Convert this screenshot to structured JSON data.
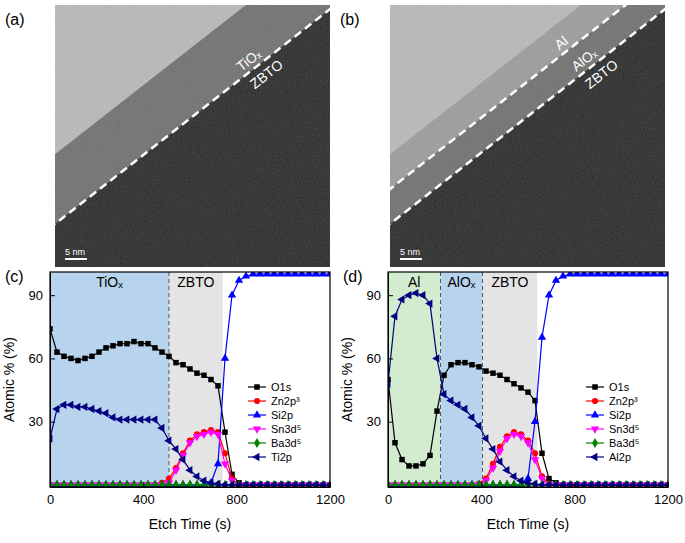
{
  "images": [
    {
      "label": "(a)",
      "layers": [
        "TiOₓ",
        "ZBTO"
      ],
      "scale_bar": "5 nm"
    },
    {
      "label": "(b)",
      "layers": [
        "Al",
        "AlOₓ",
        "ZBTO"
      ],
      "scale_bar": "5 nm"
    }
  ],
  "chart_data": [
    {
      "type": "line",
      "title": "(c)",
      "x_label": "Etch Time (s)",
      "y_label": "Atomic % (%)",
      "xlim": [
        0,
        1200
      ],
      "xticks": [
        0,
        400,
        800,
        1200
      ],
      "ylim": [
        -1,
        101
      ],
      "yticks": [
        30,
        60,
        90
      ],
      "legend": "lower right",
      "regions": [
        {
          "label": "TiOₓ",
          "start": 0,
          "end": 510,
          "color": "#b7d3ee"
        },
        {
          "label": "ZBTO",
          "start": 510,
          "end": 740,
          "color": "#e4e4e4"
        }
      ],
      "x": [
        0,
        30,
        60,
        90,
        120,
        150,
        180,
        210,
        240,
        270,
        300,
        330,
        360,
        390,
        420,
        450,
        480,
        510,
        540,
        570,
        600,
        630,
        660,
        690,
        720,
        750,
        780,
        810,
        840,
        870,
        900,
        930,
        960,
        990,
        1020,
        1050,
        1080,
        1110,
        1140,
        1170,
        1200
      ],
      "series": [
        {
          "name": "O1s",
          "color": "#000000",
          "marker": "square",
          "values": [
            74,
            63,
            61,
            60,
            59,
            60,
            61,
            63,
            65,
            66,
            67,
            67,
            68,
            67,
            67,
            65,
            63,
            61,
            58,
            57,
            55,
            53,
            52,
            50,
            47,
            25,
            5,
            1,
            0,
            0,
            0,
            0,
            0,
            0,
            0,
            0,
            0,
            0,
            0,
            0,
            0
          ]
        },
        {
          "name": "Zn2p³",
          "color": "#ff0000",
          "marker": "circle",
          "values": [
            0,
            0,
            0,
            0,
            0,
            0,
            0,
            0,
            0,
            0,
            0,
            0,
            0,
            0,
            0,
            0,
            1,
            3,
            8,
            15,
            21,
            24,
            25,
            26,
            25,
            15,
            3,
            0,
            0,
            0,
            0,
            0,
            0,
            0,
            0,
            0,
            0,
            0,
            0,
            0,
            0
          ]
        },
        {
          "name": "Si2p",
          "color": "#0000ff",
          "marker": "triangle-up",
          "values": [
            0,
            0,
            0,
            0,
            0,
            0,
            0,
            0,
            0,
            0,
            0,
            0,
            0,
            0,
            0,
            0,
            0,
            0,
            0,
            0,
            0,
            0,
            0,
            1,
            10,
            60,
            90,
            97,
            99,
            100,
            100,
            100,
            100,
            100,
            100,
            100,
            100,
            100,
            100,
            100,
            100
          ]
        },
        {
          "name": "Sn3d⁵",
          "color": "#ff00ff",
          "marker": "triangle-down",
          "values": [
            0,
            0,
            0,
            0,
            0,
            0,
            0,
            0,
            0,
            0,
            0,
            0,
            0,
            0,
            0,
            0,
            0,
            1,
            7,
            14,
            20,
            23,
            24,
            25,
            24,
            10,
            2,
            0,
            0,
            0,
            0,
            0,
            0,
            0,
            0,
            0,
            0,
            0,
            0,
            0,
            0
          ]
        },
        {
          "name": "Ba3d⁵",
          "color": "#008000",
          "marker": "diamond",
          "values": [
            0,
            0,
            0,
            0,
            0,
            0,
            0,
            0,
            0,
            0,
            0,
            0,
            0,
            0,
            0,
            0,
            0,
            0,
            0,
            0,
            0,
            0,
            0,
            0,
            0,
            0,
            0,
            0,
            0,
            0,
            0,
            0,
            0,
            0,
            0,
            0,
            0,
            0,
            0,
            0,
            0
          ]
        },
        {
          "name": "Ti2p",
          "color": "#000080",
          "marker": "triangle-left",
          "values": [
            22,
            36,
            38,
            38,
            37,
            37,
            36,
            35,
            34,
            32,
            31,
            31,
            31,
            31,
            31,
            31,
            27,
            21,
            17,
            12,
            7,
            4,
            2,
            1,
            0.5,
            0,
            0,
            0,
            0,
            0,
            0,
            0,
            0,
            0,
            0,
            0,
            0,
            0,
            0,
            0,
            0
          ]
        }
      ]
    },
    {
      "type": "line",
      "title": "(d)",
      "x_label": "Etch Time (s)",
      "y_label": "Atomic % (%)",
      "xlim": [
        0,
        1200
      ],
      "xticks": [
        0,
        400,
        800,
        1200
      ],
      "ylim": [
        -1,
        101
      ],
      "yticks": [
        30,
        60,
        90
      ],
      "legend": "lower right",
      "regions": [
        {
          "label": "Al",
          "start": 0,
          "end": 225,
          "color": "#d3ebcf"
        },
        {
          "label": "AlOₓ",
          "start": 225,
          "end": 405,
          "color": "#b7d3ee"
        },
        {
          "label": "ZBTO",
          "start": 405,
          "end": 640,
          "color": "#e4e4e4"
        }
      ],
      "x": [
        0,
        30,
        60,
        90,
        120,
        150,
        180,
        210,
        240,
        270,
        300,
        330,
        360,
        390,
        420,
        450,
        480,
        510,
        540,
        570,
        600,
        630,
        660,
        690,
        720,
        750,
        780,
        810,
        840,
        870,
        900,
        930,
        960,
        990,
        1020,
        1050,
        1080,
        1110,
        1140,
        1170,
        1200
      ],
      "series": [
        {
          "name": "O1s",
          "color": "#000000",
          "marker": "square",
          "values": [
            50,
            20,
            12,
            9,
            9,
            10,
            14,
            35,
            52,
            57,
            58,
            58,
            57,
            56,
            54,
            53,
            52,
            50,
            48,
            46,
            44,
            40,
            15,
            3,
            1,
            0,
            0,
            0,
            0,
            0,
            0,
            0,
            0,
            0,
            0,
            0,
            0,
            0,
            0,
            0,
            0
          ]
        },
        {
          "name": "Zn2p³",
          "color": "#ff0000",
          "marker": "circle",
          "values": [
            0,
            0,
            0,
            0,
            0,
            0,
            0,
            0,
            0,
            0,
            0,
            0,
            0,
            0.5,
            3,
            10,
            18,
            23,
            25,
            24,
            21,
            15,
            4,
            0.5,
            0,
            0,
            0,
            0,
            0,
            0,
            0,
            0,
            0,
            0,
            0,
            0,
            0,
            0,
            0,
            0,
            0
          ]
        },
        {
          "name": "Si2p",
          "color": "#0000ff",
          "marker": "triangle-up",
          "values": [
            0,
            0,
            0,
            0,
            0,
            0,
            0,
            0,
            0,
            0,
            0,
            0,
            0,
            0,
            0,
            0,
            0,
            0,
            0,
            0,
            3,
            30,
            70,
            90,
            97,
            99,
            100,
            100,
            100,
            100,
            100,
            100,
            100,
            100,
            100,
            100,
            100,
            100,
            100,
            100,
            100
          ]
        },
        {
          "name": "Sn3d⁵",
          "color": "#ff00ff",
          "marker": "triangle-down",
          "values": [
            0,
            0,
            0,
            0,
            0,
            0,
            0,
            0,
            0,
            0,
            0,
            0,
            0,
            0,
            2,
            8,
            16,
            22,
            24,
            23,
            20,
            12,
            3,
            0,
            0,
            0,
            0,
            0,
            0,
            0,
            0,
            0,
            0,
            0,
            0,
            0,
            0,
            0,
            0,
            0,
            0
          ]
        },
        {
          "name": "Ba3d⁵",
          "color": "#008000",
          "marker": "diamond",
          "values": [
            0,
            0,
            0,
            0,
            0,
            0,
            0,
            0,
            0,
            0,
            0,
            0,
            0,
            0,
            0,
            0,
            0,
            0,
            0,
            0,
            0,
            0,
            0,
            0,
            0,
            0,
            0,
            0,
            0,
            0,
            0,
            0,
            0,
            0,
            0,
            0,
            0,
            0,
            0,
            0,
            0
          ]
        },
        {
          "name": "Al2p",
          "color": "#000080",
          "marker": "triangle-left",
          "values": [
            48,
            80,
            88,
            90,
            91,
            90,
            86,
            60,
            43,
            40,
            38,
            36,
            32,
            28,
            22,
            17,
            11,
            7,
            4,
            2,
            1,
            0.5,
            0,
            0,
            0,
            0,
            0,
            0,
            0,
            0,
            0,
            0,
            0,
            0,
            0,
            0,
            0,
            0,
            0,
            0,
            0
          ]
        }
      ]
    }
  ]
}
